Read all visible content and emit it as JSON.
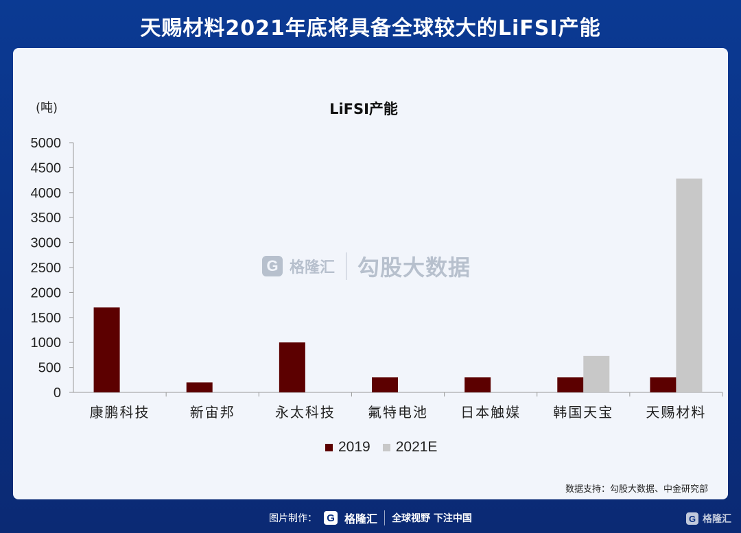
{
  "header": {
    "title": "天赐材料2021年底将具备全球较大的LiFSI产能"
  },
  "chart_data": {
    "type": "bar",
    "title": "LiFSI产能",
    "unit_label": "(吨)",
    "categories": [
      "康鹏科技",
      "新宙邦",
      "永太科技",
      "氟特电池",
      "日本触媒",
      "韩国天宝",
      "天赐材料"
    ],
    "series": [
      {
        "name": "2019",
        "color": "#5c0000",
        "values": [
          1700,
          200,
          1000,
          300,
          300,
          300,
          300
        ]
      },
      {
        "name": "2021E",
        "color": "#c8c8c8",
        "values": [
          0,
          0,
          0,
          0,
          0,
          730,
          4280
        ]
      }
    ],
    "ylim": [
      0,
      5000
    ],
    "yticks": [
      "0",
      "500",
      "1000",
      "1500",
      "2000",
      "2500",
      "3000",
      "3500",
      "4000",
      "4500",
      "5000"
    ],
    "legend_position": "bottom"
  },
  "source": "数据支持：勾股大数据、中金研究部",
  "watermark": {
    "logo": "G",
    "brand": "格隆汇",
    "text": "勾股大数据"
  },
  "footer": {
    "made_by": "图片制作：",
    "logo": "G",
    "brand": "格隆汇",
    "slogan": "全球视野 下注中国"
  },
  "corner": {
    "logo": "G",
    "brand": "格隆汇"
  }
}
